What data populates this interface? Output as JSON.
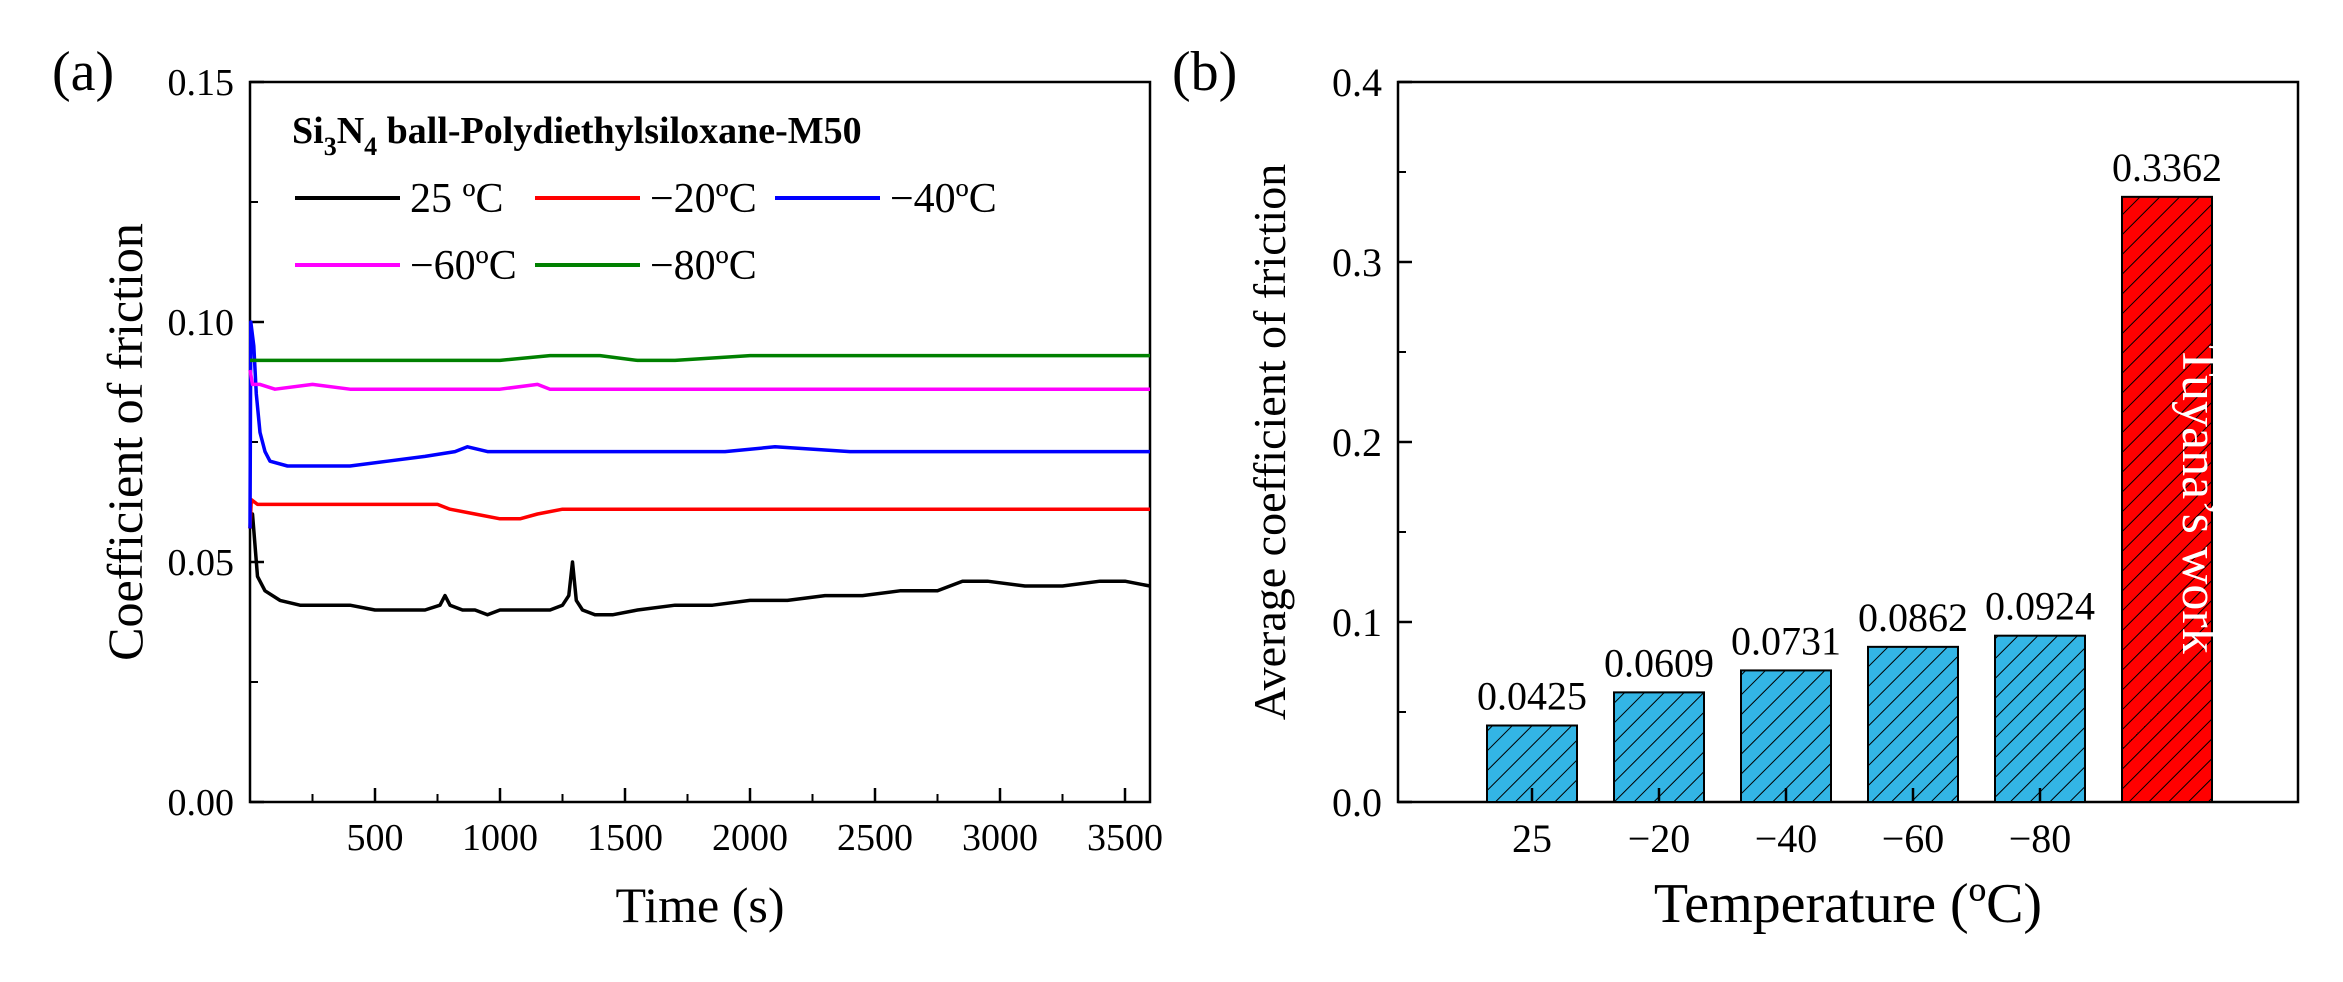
{
  "chart_data": [
    {
      "panel_label": "(a)",
      "type": "line",
      "title": "",
      "legend_title": {
        "main": "Si",
        "sub1": "3",
        "mid": "N",
        "sub2": "4",
        "rest": " ball-Polydiethylsiloxane-M50"
      },
      "xlabel": "Time (s)",
      "ylabel": "Coefficient of friction",
      "xlim": [
        0,
        3600
      ],
      "ylim": [
        0.0,
        0.15
      ],
      "xticks": [
        "500",
        "1000",
        "1500",
        "2000",
        "2500",
        "3000",
        "3500"
      ],
      "xtick_values": [
        500,
        1000,
        1500,
        2000,
        2500,
        3000,
        3500
      ],
      "yticks": [
        "0.00",
        "0.05",
        "0.10",
        "0.15"
      ],
      "ytick_values": [
        0.0,
        0.05,
        0.1,
        0.15
      ],
      "legend_position": "top-left",
      "series": [
        {
          "name": "25 °C",
          "legend_label": "25 ºC",
          "color": "#000000",
          "points": [
            [
              0,
              0.057
            ],
            [
              10,
              0.06
            ],
            [
              30,
              0.047
            ],
            [
              60,
              0.044
            ],
            [
              120,
              0.042
            ],
            [
              200,
              0.041
            ],
            [
              300,
              0.041
            ],
            [
              400,
              0.041
            ],
            [
              500,
              0.04
            ],
            [
              600,
              0.04
            ],
            [
              700,
              0.04
            ],
            [
              760,
              0.041
            ],
            [
              780,
              0.043
            ],
            [
              800,
              0.041
            ],
            [
              850,
              0.04
            ],
            [
              900,
              0.04
            ],
            [
              950,
              0.039
            ],
            [
              1000,
              0.04
            ],
            [
              1050,
              0.04
            ],
            [
              1100,
              0.04
            ],
            [
              1150,
              0.04
            ],
            [
              1200,
              0.04
            ],
            [
              1250,
              0.041
            ],
            [
              1275,
              0.043
            ],
            [
              1290,
              0.05
            ],
            [
              1305,
              0.042
            ],
            [
              1330,
              0.04
            ],
            [
              1380,
              0.039
            ],
            [
              1450,
              0.039
            ],
            [
              1550,
              0.04
            ],
            [
              1700,
              0.041
            ],
            [
              1850,
              0.041
            ],
            [
              2000,
              0.042
            ],
            [
              2150,
              0.042
            ],
            [
              2300,
              0.043
            ],
            [
              2450,
              0.043
            ],
            [
              2600,
              0.044
            ],
            [
              2750,
              0.044
            ],
            [
              2850,
              0.046
            ],
            [
              2950,
              0.046
            ],
            [
              3100,
              0.045
            ],
            [
              3250,
              0.045
            ],
            [
              3400,
              0.046
            ],
            [
              3500,
              0.046
            ],
            [
              3600,
              0.045
            ]
          ]
        },
        {
          "name": "−20°C",
          "legend_label": "−20ºC",
          "color": "#ff0000",
          "points": [
            [
              0,
              0.057
            ],
            [
              5,
              0.063
            ],
            [
              30,
              0.062
            ],
            [
              200,
              0.062
            ],
            [
              400,
              0.062
            ],
            [
              600,
              0.062
            ],
            [
              750,
              0.062
            ],
            [
              800,
              0.061
            ],
            [
              900,
              0.06
            ],
            [
              1000,
              0.059
            ],
            [
              1080,
              0.059
            ],
            [
              1150,
              0.06
            ],
            [
              1250,
              0.061
            ],
            [
              1400,
              0.061
            ],
            [
              1700,
              0.061
            ],
            [
              2000,
              0.061
            ],
            [
              2500,
              0.061
            ],
            [
              3000,
              0.061
            ],
            [
              3600,
              0.061
            ]
          ]
        },
        {
          "name": "−40°C",
          "legend_label": "−40ºC",
          "color": "#0000ff",
          "points": [
            [
              0,
              0.057
            ],
            [
              3,
              0.1
            ],
            [
              15,
              0.095
            ],
            [
              25,
              0.085
            ],
            [
              40,
              0.077
            ],
            [
              60,
              0.073
            ],
            [
              80,
              0.071
            ],
            [
              150,
              0.07
            ],
            [
              250,
              0.07
            ],
            [
              400,
              0.07
            ],
            [
              550,
              0.071
            ],
            [
              700,
              0.072
            ],
            [
              820,
              0.073
            ],
            [
              870,
              0.074
            ],
            [
              950,
              0.073
            ],
            [
              1100,
              0.073
            ],
            [
              1300,
              0.073
            ],
            [
              1600,
              0.073
            ],
            [
              1900,
              0.073
            ],
            [
              2100,
              0.074
            ],
            [
              2400,
              0.073
            ],
            [
              2800,
              0.073
            ],
            [
              3200,
              0.073
            ],
            [
              3600,
              0.073
            ]
          ]
        },
        {
          "name": "−60°C",
          "legend_label": "−60ºC",
          "color": "#ff00ff",
          "points": [
            [
              0,
              0.09
            ],
            [
              10,
              0.087
            ],
            [
              40,
              0.087
            ],
            [
              100,
              0.086
            ],
            [
              250,
              0.087
            ],
            [
              400,
              0.086
            ],
            [
              600,
              0.086
            ],
            [
              800,
              0.086
            ],
            [
              1000,
              0.086
            ],
            [
              1150,
              0.087
            ],
            [
              1200,
              0.086
            ],
            [
              1300,
              0.086
            ],
            [
              1600,
              0.086
            ],
            [
              2000,
              0.086
            ],
            [
              2500,
              0.086
            ],
            [
              3000,
              0.086
            ],
            [
              3600,
              0.086
            ]
          ]
        },
        {
          "name": "−80°C",
          "legend_label": "−80ºC",
          "color": "#008000",
          "points": [
            [
              0,
              0.092
            ],
            [
              30,
              0.092
            ],
            [
              100,
              0.092
            ],
            [
              200,
              0.092
            ],
            [
              400,
              0.092
            ],
            [
              600,
              0.092
            ],
            [
              800,
              0.092
            ],
            [
              1000,
              0.092
            ],
            [
              1200,
              0.093
            ],
            [
              1400,
              0.093
            ],
            [
              1550,
              0.092
            ],
            [
              1700,
              0.092
            ],
            [
              2000,
              0.093
            ],
            [
              2500,
              0.093
            ],
            [
              3000,
              0.093
            ],
            [
              3600,
              0.093
            ]
          ]
        }
      ]
    },
    {
      "panel_label": "(b)",
      "type": "bar",
      "title": "",
      "xlabel": "Temperature (ºC)",
      "ylabel": "Average coefficient of friction",
      "ylim": [
        0.0,
        0.4
      ],
      "yticks": [
        "0.0",
        "0.1",
        "0.2",
        "0.3",
        "0.4"
      ],
      "ytick_values": [
        0.0,
        0.1,
        0.2,
        0.3,
        0.4
      ],
      "categories": [
        "25",
        "−20",
        "−40",
        "−60",
        "−80",
        ""
      ],
      "values": [
        0.0425,
        0.0609,
        0.0731,
        0.0862,
        0.0924,
        0.3362
      ],
      "value_labels": [
        "0.0425",
        "0.0609",
        "0.0731",
        "0.0862",
        "0.0924",
        "0.3362"
      ],
      "bar_colors": [
        "#33b5e5",
        "#33b5e5",
        "#33b5e5",
        "#33b5e5",
        "#33b5e5",
        "#ff0000"
      ],
      "bar_annotations": [
        "",
        "",
        "",
        "",
        "",
        "Tuyana’s work"
      ],
      "hatch": "diagonal"
    }
  ]
}
